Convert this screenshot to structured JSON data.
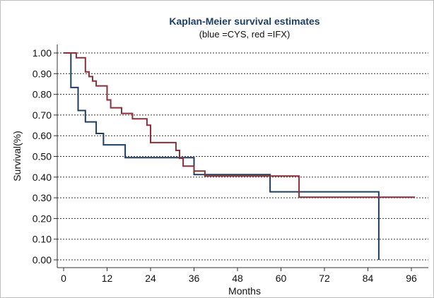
{
  "chart_data": {
    "type": "line",
    "step": true,
    "title": "Kaplan-Meier survival estimates",
    "subtitle": "(blue =CYS, red =IFX)",
    "xlabel": "Months",
    "ylabel": "Survival(%)",
    "xlim": [
      0,
      98
    ],
    "ylim": [
      0,
      1
    ],
    "xticks": [
      "0",
      "12",
      "24",
      "36",
      "48",
      "60",
      "72",
      "84",
      "96"
    ],
    "yticks": [
      "0.00",
      "0.10",
      "0.20",
      "0.30",
      "0.40",
      "0.50",
      "0.60",
      "0.70",
      "0.80",
      "0.90",
      "1.00"
    ],
    "grid": "horizontal dotted",
    "series": [
      {
        "color": "#1f3e66",
        "points": [
          [
            0,
            1.0
          ],
          [
            2,
            1.0
          ],
          [
            2,
            0.833
          ],
          [
            4,
            0.833
          ],
          [
            4,
            0.722
          ],
          [
            6,
            0.722
          ],
          [
            6,
            0.667
          ],
          [
            9,
            0.667
          ],
          [
            9,
            0.611
          ],
          [
            11,
            0.611
          ],
          [
            11,
            0.556
          ],
          [
            17,
            0.556
          ],
          [
            17,
            0.494
          ],
          [
            36,
            0.494
          ],
          [
            36,
            0.412
          ],
          [
            57,
            0.412
          ],
          [
            57,
            0.329
          ],
          [
            87,
            0.329
          ],
          [
            87,
            0.0
          ]
        ]
      },
      {
        "color": "#8b2f3a",
        "points": [
          [
            0,
            1.0
          ],
          [
            3.5,
            1.0
          ],
          [
            3.5,
            0.977
          ],
          [
            6,
            0.977
          ],
          [
            6,
            0.909
          ],
          [
            7,
            0.909
          ],
          [
            7,
            0.886
          ],
          [
            8,
            0.886
          ],
          [
            8,
            0.864
          ],
          [
            9,
            0.864
          ],
          [
            9,
            0.841
          ],
          [
            12,
            0.841
          ],
          [
            12,
            0.773
          ],
          [
            13,
            0.773
          ],
          [
            13,
            0.735
          ],
          [
            16,
            0.735
          ],
          [
            16,
            0.708
          ],
          [
            19,
            0.708
          ],
          [
            19,
            0.682
          ],
          [
            23,
            0.682
          ],
          [
            23,
            0.651
          ],
          [
            24,
            0.651
          ],
          [
            24,
            0.567
          ],
          [
            31,
            0.567
          ],
          [
            31,
            0.529
          ],
          [
            32,
            0.529
          ],
          [
            32,
            0.491
          ],
          [
            33,
            0.491
          ],
          [
            33,
            0.453
          ],
          [
            36,
            0.453
          ],
          [
            36,
            0.429
          ],
          [
            39,
            0.429
          ],
          [
            39,
            0.405
          ],
          [
            65,
            0.405
          ],
          [
            65,
            0.303
          ],
          [
            97,
            0.303
          ]
        ]
      }
    ]
  }
}
